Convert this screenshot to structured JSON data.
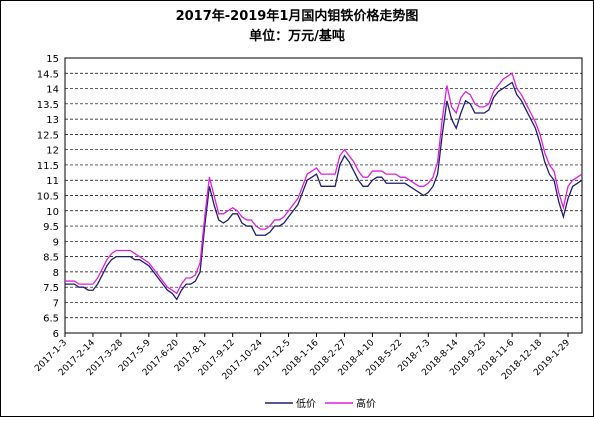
{
  "chart_data": {
    "type": "line",
    "title": "2017年-2019年1月国内钼铁价格走势图",
    "subtitle": "单位：万元/基吨",
    "categories": [
      "2017-1-3",
      null,
      null,
      null,
      null,
      null,
      "2017-2-14",
      null,
      null,
      null,
      null,
      null,
      "2017-3-28",
      null,
      null,
      null,
      null,
      null,
      "2017-5-9",
      null,
      null,
      null,
      null,
      null,
      "2017-6-20",
      null,
      null,
      null,
      null,
      null,
      "2017-8-1",
      null,
      null,
      null,
      null,
      null,
      "2017-9-12",
      null,
      null,
      null,
      null,
      null,
      "2017-10-24",
      null,
      null,
      null,
      null,
      null,
      "2017-12-5",
      null,
      null,
      null,
      null,
      null,
      "2018-1-16",
      null,
      null,
      null,
      null,
      null,
      "2018-2-27",
      null,
      null,
      null,
      null,
      null,
      "2018-4-10",
      null,
      null,
      null,
      null,
      null,
      "2018-5-22",
      null,
      null,
      null,
      null,
      null,
      "2018-7-3",
      null,
      null,
      null,
      null,
      null,
      "2018-8-14",
      null,
      null,
      null,
      null,
      null,
      "2018-9-25",
      null,
      null,
      null,
      null,
      null,
      "2018-11-6",
      null,
      null,
      null,
      null,
      null,
      "2018-12-18",
      null,
      null,
      null,
      null,
      null,
      "2019-1-29",
      null,
      null,
      null
    ],
    "series": [
      {
        "name": "低价",
        "color": "#1f1f6e",
        "values": [
          7.6,
          7.6,
          7.6,
          7.5,
          7.5,
          7.4,
          7.4,
          7.6,
          7.9,
          8.2,
          8.4,
          8.5,
          8.5,
          8.5,
          8.5,
          8.4,
          8.4,
          8.3,
          8.2,
          8.0,
          7.8,
          7.6,
          7.4,
          7.3,
          7.1,
          7.4,
          7.6,
          7.6,
          7.7,
          8.0,
          9.5,
          10.8,
          10.2,
          9.7,
          9.6,
          9.7,
          9.9,
          9.9,
          9.6,
          9.5,
          9.5,
          9.2,
          9.2,
          9.2,
          9.3,
          9.5,
          9.5,
          9.6,
          9.8,
          10.0,
          10.2,
          10.6,
          11.0,
          11.1,
          11.2,
          10.8,
          10.8,
          10.8,
          10.8,
          11.5,
          11.8,
          11.6,
          11.3,
          11.0,
          10.8,
          10.8,
          11.0,
          11.1,
          11.1,
          10.9,
          10.9,
          10.9,
          10.9,
          10.9,
          10.8,
          10.7,
          10.6,
          10.5,
          10.6,
          10.8,
          11.2,
          12.5,
          13.6,
          13.0,
          12.7,
          13.2,
          13.6,
          13.5,
          13.2,
          13.2,
          13.2,
          13.3,
          13.7,
          13.9,
          14.0,
          14.1,
          14.2,
          13.8,
          13.6,
          13.3,
          13.0,
          12.7,
          12.2,
          11.6,
          11.2,
          11.0,
          10.3,
          9.8,
          10.4,
          10.8,
          10.9,
          11.0
        ]
      },
      {
        "name": "高价",
        "color": "#e020e0",
        "values": [
          7.7,
          7.7,
          7.7,
          7.6,
          7.6,
          7.6,
          7.6,
          7.8,
          8.1,
          8.4,
          8.6,
          8.7,
          8.7,
          8.7,
          8.7,
          8.6,
          8.5,
          8.4,
          8.3,
          8.1,
          7.9,
          7.7,
          7.5,
          7.4,
          7.3,
          7.6,
          7.8,
          7.8,
          7.9,
          8.3,
          9.8,
          11.1,
          10.5,
          9.9,
          9.9,
          10.0,
          10.1,
          10.0,
          9.8,
          9.7,
          9.7,
          9.5,
          9.4,
          9.4,
          9.5,
          9.7,
          9.7,
          9.8,
          10.0,
          10.2,
          10.4,
          10.8,
          11.2,
          11.3,
          11.4,
          11.2,
          11.2,
          11.2,
          11.2,
          11.8,
          12.0,
          11.8,
          11.6,
          11.3,
          11.1,
          11.1,
          11.3,
          11.3,
          11.3,
          11.2,
          11.2,
          11.2,
          11.1,
          11.1,
          11.0,
          10.9,
          10.8,
          10.8,
          10.9,
          11.1,
          11.6,
          13.0,
          14.1,
          13.4,
          13.2,
          13.7,
          13.9,
          13.8,
          13.5,
          13.4,
          13.4,
          13.5,
          13.9,
          14.1,
          14.3,
          14.4,
          14.5,
          14.0,
          13.8,
          13.5,
          13.2,
          12.9,
          12.5,
          11.9,
          11.5,
          11.3,
          10.6,
          10.1,
          10.8,
          11.0,
          11.1,
          11.2
        ]
      }
    ],
    "ylim": [
      6,
      15
    ],
    "yticks": [
      6,
      6.5,
      7,
      7.5,
      8,
      8.5,
      9,
      9.5,
      10,
      10.5,
      11,
      11.5,
      12,
      12.5,
      13,
      13.5,
      14,
      14.5,
      15
    ],
    "grid": true,
    "legend": "bottom"
  }
}
